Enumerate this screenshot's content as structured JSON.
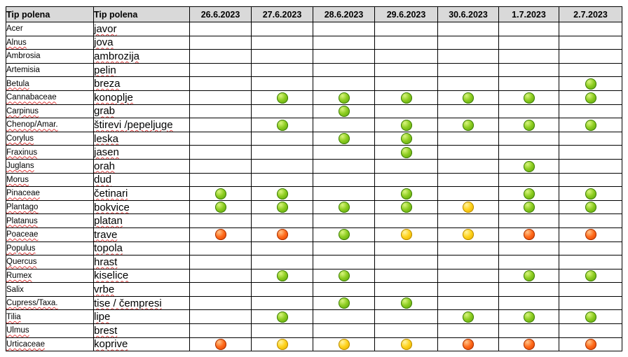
{
  "table": {
    "header": {
      "latin": "Tip polena",
      "local": "Tip polena",
      "dates": [
        "26.6.2023",
        "27.6.2023",
        "28.6.2023",
        "29.6.2023",
        "30.6.2023",
        "1.7.2023",
        "2.7.2023"
      ]
    },
    "legend_colors": {
      "low": "#7cc21a",
      "medium": "#ffd21a",
      "high": "#ff5a10"
    },
    "rows": [
      {
        "latin": "Acer",
        "local": "javor",
        "levels": [
          "",
          "",
          "",
          "",
          "",
          "",
          ""
        ]
      },
      {
        "latin": "Alnus",
        "local": "jova",
        "levels": [
          "",
          "",
          "",
          "",
          "",
          "",
          ""
        ]
      },
      {
        "latin": "Ambrosia",
        "local": "ambrozija",
        "levels": [
          "",
          "",
          "",
          "",
          "",
          "",
          ""
        ]
      },
      {
        "latin": "Artemisia",
        "local": "pelin",
        "levels": [
          "",
          "",
          "",
          "",
          "",
          "",
          ""
        ]
      },
      {
        "latin": "Betula",
        "local": "breza",
        "levels": [
          "",
          "",
          "",
          "",
          "",
          "",
          "low"
        ]
      },
      {
        "latin": "Cannabaceae",
        "local": "konoplje",
        "levels": [
          "",
          "low",
          "low",
          "low",
          "low",
          "low",
          "low"
        ]
      },
      {
        "latin": "Carpinus",
        "local": "grab",
        "levels": [
          "",
          "",
          "low",
          "",
          "",
          "",
          ""
        ]
      },
      {
        "latin": "Chenop/Amar.",
        "local": "štirevi /pepeljuge",
        "levels": [
          "",
          "low",
          "",
          "low",
          "low",
          "low",
          "low"
        ]
      },
      {
        "latin": "Corylus",
        "local": "leska",
        "levels": [
          "",
          "",
          "low",
          "low",
          "",
          "",
          ""
        ]
      },
      {
        "latin": "Fraxinus",
        "local": "jasen",
        "levels": [
          "",
          "",
          "",
          "low",
          "",
          "",
          ""
        ]
      },
      {
        "latin": "Juglans",
        "local": "orah",
        "levels": [
          "",
          "",
          "",
          "",
          "",
          "low",
          ""
        ]
      },
      {
        "latin": "Morus",
        "local": "dud",
        "levels": [
          "",
          "",
          "",
          "",
          "",
          "",
          ""
        ]
      },
      {
        "latin": "Pinaceae",
        "local": "četinari",
        "levels": [
          "low",
          "low",
          "",
          "low",
          "",
          "low",
          "low"
        ]
      },
      {
        "latin": "Plantago",
        "local": "bokvice",
        "levels": [
          "low",
          "low",
          "low",
          "low",
          "medium",
          "low",
          "low"
        ]
      },
      {
        "latin": "Platanus",
        "local": "platan",
        "levels": [
          "",
          "",
          "",
          "",
          "",
          "",
          ""
        ]
      },
      {
        "latin": "Poaceae",
        "local": "trave",
        "levels": [
          "high",
          "high",
          "low",
          "medium",
          "medium",
          "high",
          "high"
        ]
      },
      {
        "latin": "Populus",
        "local": "topola",
        "levels": [
          "",
          "",
          "",
          "",
          "",
          "",
          ""
        ]
      },
      {
        "latin": "Quercus",
        "local": "hrast",
        "levels": [
          "",
          "",
          "",
          "",
          "",
          "",
          ""
        ]
      },
      {
        "latin": "Rumex",
        "local": "kiselice",
        "levels": [
          "",
          "low",
          "low",
          "",
          "",
          "low",
          "low"
        ]
      },
      {
        "latin": "Salix",
        "local": "vrbe",
        "levels": [
          "",
          "",
          "",
          "",
          "",
          "",
          ""
        ]
      },
      {
        "latin": "Cupress/Taxa.",
        "local": "tise / čempresi",
        "levels": [
          "",
          "",
          "low",
          "low",
          "",
          "",
          ""
        ]
      },
      {
        "latin": "Tilia",
        "local": "lipe",
        "levels": [
          "",
          "low",
          "",
          "",
          "low",
          "low",
          "low"
        ]
      },
      {
        "latin": "Ulmus",
        "local": "brest",
        "levels": [
          "",
          "",
          "",
          "",
          "",
          "",
          ""
        ]
      },
      {
        "latin": "Urticaceae",
        "local": "koprive",
        "levels": [
          "high",
          "medium",
          "medium",
          "medium",
          "high",
          "high",
          "high"
        ]
      }
    ]
  }
}
